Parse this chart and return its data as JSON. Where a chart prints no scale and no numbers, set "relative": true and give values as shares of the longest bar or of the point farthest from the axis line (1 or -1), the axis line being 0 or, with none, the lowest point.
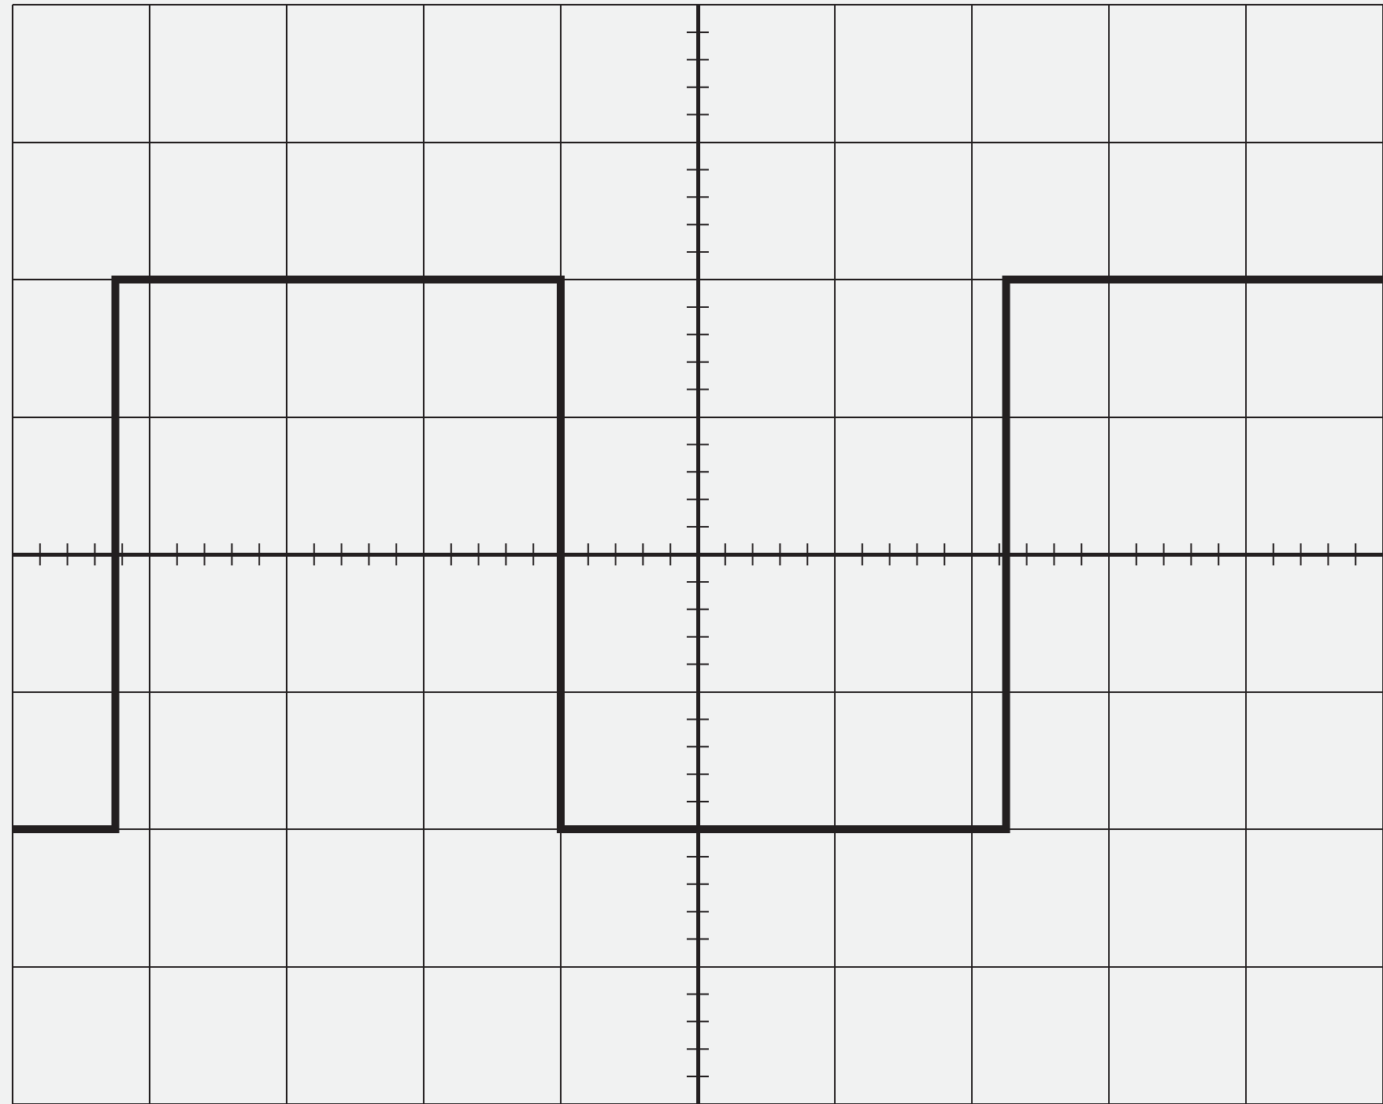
{
  "chart_data": {
    "type": "step",
    "relative": true,
    "grid": true,
    "color": "#231f20",
    "categories": [
      null,
      null,
      null,
      null,
      null,
      null,
      null,
      null,
      null,
      null,
      null,
      null,
      null,
      null,
      null,
      null,
      null,
      null,
      null,
      null,
      null,
      null,
      null,
      null,
      null,
      null,
      null,
      null,
      null,
      null,
      null,
      null,
      null,
      null,
      null,
      null,
      null,
      null,
      null,
      null,
      null
    ],
    "values": [
      -1,
      -1,
      -1,
      1,
      1,
      1,
      1,
      1,
      1,
      1,
      1,
      1,
      1,
      1,
      1,
      1,
      -1,
      -1,
      -1,
      -1,
      -1,
      -1,
      -1,
      -1,
      -1,
      -1,
      -1,
      -1,
      -1,
      1,
      1,
      1,
      1,
      1,
      1,
      1,
      1,
      1,
      1,
      1,
      1
    ]
  }
}
